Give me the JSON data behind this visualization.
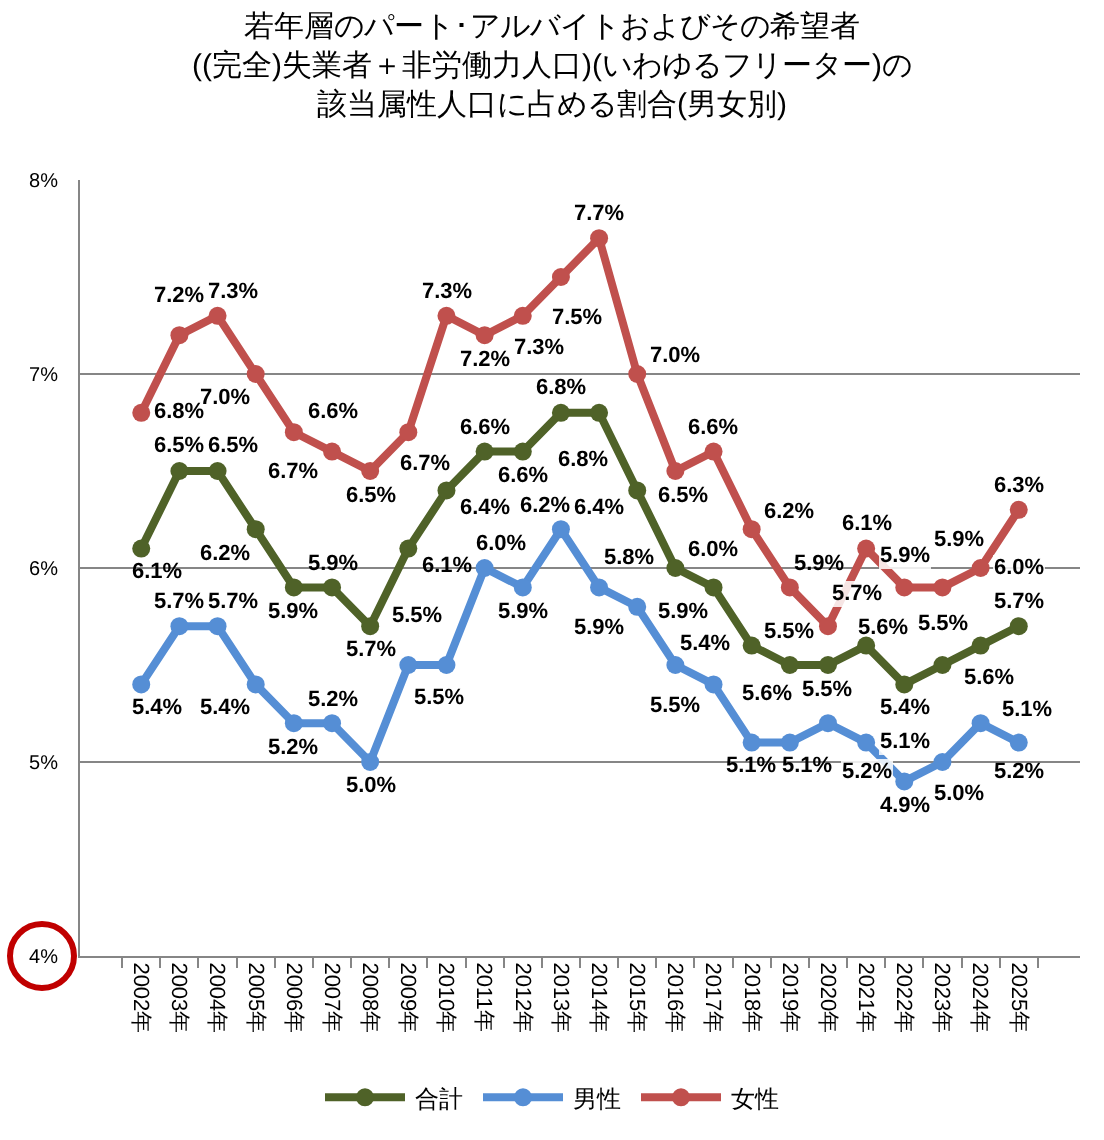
{
  "chart_data": {
    "type": "line",
    "title": "若年層のパート･アルバイトおよびその希望者((完全)失業者＋非労働力人口)(いわゆるフリーター)の該当属性人口に占める割合(男女別)",
    "categories": [
      "2002年",
      "2003年",
      "2004年",
      "2005年",
      "2006年",
      "2007年",
      "2008年",
      "2009年",
      "2010年",
      "2011年",
      "2012年",
      "2013年",
      "2014年",
      "2015年",
      "2016年",
      "2017年",
      "2018年",
      "2019年",
      "2020年",
      "2021年",
      "2022年",
      "2023年",
      "2024年",
      "2025年"
    ],
    "series": [
      {
        "name": "合計",
        "color": "#4f6228",
        "values": [
          6.1,
          6.5,
          6.5,
          6.2,
          5.9,
          5.9,
          5.7,
          6.1,
          6.4,
          6.6,
          6.6,
          6.8,
          6.8,
          6.4,
          6.0,
          5.9,
          5.6,
          5.5,
          5.5,
          5.6,
          5.4,
          5.5,
          5.6,
          5.7
        ],
        "value_labels": [
          "6.1%",
          "6.5%",
          "6.5%",
          "6.2%",
          "5.9%",
          "5.9%",
          "5.7%",
          "6.1%",
          "6.4%",
          "6.6%",
          "6.6%",
          "6.8%",
          "6.8%",
          "6.4%",
          "6.0%",
          "5.9%",
          "5.6%",
          "5.5%",
          "5.5%",
          "5.6%",
          "5.4%",
          "5.5%",
          "5.6%",
          "5.7%"
        ]
      },
      {
        "name": "男性",
        "color": "#558ed5",
        "values": [
          5.4,
          5.7,
          5.7,
          5.4,
          5.2,
          5.2,
          5.0,
          5.5,
          5.5,
          6.0,
          5.9,
          6.2,
          5.9,
          5.8,
          5.5,
          5.4,
          5.1,
          5.1,
          5.2,
          5.1,
          4.9,
          5.0,
          5.2,
          5.1
        ],
        "value_labels": [
          "5.4%",
          "5.7%",
          "5.7%",
          "5.4%",
          "5.2%",
          "5.2%",
          "5.0%",
          "5.5%",
          "5.5%",
          "6.0%",
          "5.9%",
          "6.2%",
          "5.9%",
          "5.8%",
          "5.5%",
          "5.4%",
          "5.1%",
          "5.1%",
          "5.2%",
          "5.1%",
          "4.9%",
          "5.0%",
          "5.2%",
          "5.1%"
        ]
      },
      {
        "name": "女性",
        "color": "#c0504d",
        "values": [
          6.8,
          7.2,
          7.3,
          7.0,
          6.7,
          6.6,
          6.5,
          6.7,
          7.3,
          7.2,
          7.3,
          7.5,
          7.7,
          7.0,
          6.5,
          6.6,
          6.2,
          5.9,
          5.7,
          6.1,
          5.9,
          5.9,
          6.0,
          6.3
        ],
        "value_labels": [
          "6.8%",
          "7.2%",
          "7.3%",
          "7.0%",
          "6.7%",
          "6.6%",
          "6.5%",
          "6.7%",
          "7.3%",
          "7.2%",
          "7.3%",
          "7.5%",
          "7.7%",
          "7.0%",
          "6.5%",
          "6.6%",
          "6.2%",
          "5.9%",
          "5.7%",
          "6.1%",
          "5.9%",
          "5.9%",
          "6.0%",
          "6.3%"
        ]
      }
    ],
    "ylim": [
      4,
      8
    ],
    "yticks": [
      {
        "value": 4,
        "label": "4%"
      },
      {
        "value": 5,
        "label": "5%"
      },
      {
        "value": 6,
        "label": "6%"
      },
      {
        "value": 7,
        "label": "7%"
      },
      {
        "value": 8,
        "label": "8%"
      }
    ],
    "grid": "y",
    "legend": "bottom",
    "marker": "circle",
    "line_style": "solid"
  }
}
